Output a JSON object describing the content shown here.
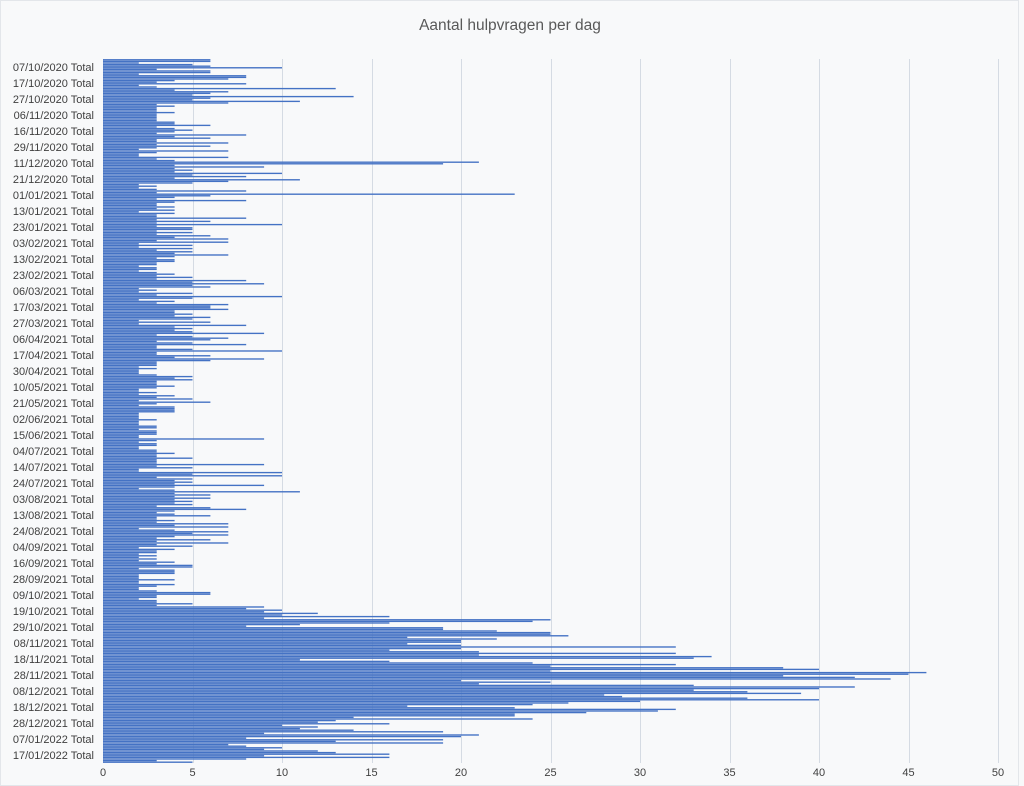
{
  "chart_data": {
    "type": "bar",
    "orientation": "horizontal",
    "title": "Aantal hulpvragen per dag",
    "xlim": [
      0,
      50
    ],
    "x_ticks": [
      0,
      5,
      10,
      15,
      20,
      25,
      30,
      35,
      40,
      45,
      50
    ],
    "grid": "vertical",
    "bar_color": "#4472C4",
    "groups": [
      {
        "label": "07/10/2020 Total",
        "values": [
          6,
          6,
          2,
          5,
          6,
          10,
          3,
          6,
          6,
          2
        ]
      },
      {
        "label": "17/10/2020 Total",
        "values": [
          8,
          8,
          7,
          4,
          3,
          8,
          2,
          3,
          13,
          4
        ]
      },
      {
        "label": "27/10/2020 Total",
        "values": [
          7,
          6,
          5,
          14,
          6,
          5,
          11,
          7,
          3,
          4
        ]
      },
      {
        "label": "06/11/2020 Total",
        "values": [
          3,
          3,
          3,
          4,
          3,
          3,
          3,
          3,
          3,
          4
        ]
      },
      {
        "label": "16/11/2020 Total",
        "values": [
          4,
          6,
          3,
          4,
          5,
          4,
          3,
          8,
          4,
          6
        ]
      },
      {
        "label": "29/11/2020 Total",
        "values": [
          3,
          3,
          7,
          3,
          6,
          3,
          2,
          7,
          3,
          2
        ]
      },
      {
        "label": "11/12/2020 Total",
        "values": [
          2,
          7,
          3,
          4,
          21,
          19,
          4,
          9,
          4,
          5
        ]
      },
      {
        "label": "21/12/2020 Total",
        "values": [
          4,
          10,
          5,
          8,
          4,
          11,
          7,
          5,
          2,
          3
        ]
      },
      {
        "label": "01/01/2021 Total",
        "values": [
          2,
          3,
          8,
          3,
          23,
          6,
          4,
          3,
          8,
          4
        ]
      },
      {
        "label": "13/01/2021 Total",
        "values": [
          3,
          3,
          4,
          3,
          4,
          2,
          4,
          3,
          3,
          8
        ]
      },
      {
        "label": "23/01/2021 Total",
        "values": [
          3,
          6,
          3,
          10,
          3,
          5,
          5,
          3,
          5,
          3
        ]
      },
      {
        "label": "03/02/2021 Total",
        "values": [
          6,
          4,
          7,
          3,
          7,
          2,
          5,
          2,
          5,
          3
        ]
      },
      {
        "label": "13/02/2021 Total",
        "values": [
          5,
          4,
          7,
          4,
          3,
          4,
          4,
          3,
          3,
          2
        ]
      },
      {
        "label": "23/02/2021 Total",
        "values": [
          3,
          3,
          2,
          3,
          4,
          3,
          5,
          3,
          8,
          5
        ]
      },
      {
        "label": "06/03/2021 Total",
        "values": [
          9,
          5,
          6,
          2,
          3,
          2,
          5,
          3,
          10,
          5
        ]
      },
      {
        "label": "17/03/2021 Total",
        "values": [
          2,
          4,
          3,
          7,
          6,
          6,
          7,
          4,
          4,
          5
        ]
      },
      {
        "label": "27/03/2021 Total",
        "values": [
          4,
          6,
          5,
          2,
          6,
          2,
          8,
          4,
          5,
          4
        ]
      },
      {
        "label": "06/04/2021 Total",
        "values": [
          5,
          9,
          3,
          5,
          7,
          6,
          3,
          5,
          8,
          3
        ]
      },
      {
        "label": "17/04/2021 Total",
        "values": [
          3,
          5,
          10,
          3,
          3,
          6,
          4,
          9,
          6,
          3
        ]
      },
      {
        "label": "30/04/2021 Total",
        "values": [
          3,
          3,
          2,
          3,
          2,
          2,
          2,
          3,
          5,
          4
        ]
      },
      {
        "label": "10/05/2021 Total",
        "values": [
          5,
          3,
          3,
          3,
          4,
          3,
          2,
          2,
          3,
          2
        ]
      },
      {
        "label": "21/05/2021 Total",
        "values": [
          4,
          3,
          5,
          2,
          6,
          3,
          2,
          4,
          4,
          4
        ]
      },
      {
        "label": "02/06/2021 Total",
        "values": [
          4,
          2,
          2,
          2,
          2,
          3,
          2,
          2,
          2,
          3
        ]
      },
      {
        "label": "15/06/2021 Total",
        "values": [
          3,
          2,
          3,
          3,
          3,
          2,
          2,
          9,
          3,
          2
        ]
      },
      {
        "label": "04/07/2021 Total",
        "values": [
          3,
          3,
          2,
          2,
          3,
          3,
          4,
          3,
          3,
          5
        ]
      },
      {
        "label": "14/07/2021 Total",
        "values": [
          3,
          3,
          3,
          9,
          3,
          5,
          2,
          2,
          10,
          5
        ]
      },
      {
        "label": "24/07/2021 Total",
        "values": [
          10,
          3,
          5,
          4,
          5,
          4,
          9,
          4,
          2,
          4
        ]
      },
      {
        "label": "03/08/2021 Total",
        "values": [
          11,
          4,
          6,
          4,
          6,
          4,
          5,
          4,
          5,
          3
        ]
      },
      {
        "label": "13/08/2021 Total",
        "values": [
          6,
          8,
          4,
          3,
          4,
          6,
          3,
          3,
          4,
          3
        ]
      },
      {
        "label": "24/08/2021 Total",
        "values": [
          7,
          4,
          7,
          2,
          4,
          7,
          5,
          7,
          4,
          3
        ]
      },
      {
        "label": "04/09/2021 Total",
        "values": [
          6,
          3,
          7,
          3,
          5,
          2,
          4,
          3,
          3,
          2
        ]
      },
      {
        "label": "16/09/2021 Total",
        "values": [
          3,
          2,
          3,
          2,
          4,
          3,
          5,
          5,
          2,
          4
        ]
      },
      {
        "label": "28/09/2021 Total",
        "values": [
          4,
          4,
          2,
          2,
          2,
          4,
          2,
          2,
          4,
          3
        ]
      },
      {
        "label": "09/10/2021 Total",
        "values": [
          2,
          2,
          3,
          6,
          6,
          3,
          3,
          2,
          3,
          3
        ]
      },
      {
        "label": "19/10/2021 Total",
        "values": [
          5,
          3,
          9,
          8,
          10,
          9,
          12,
          10,
          16,
          9
        ]
      },
      {
        "label": "29/10/2021 Total",
        "values": [
          25,
          24,
          16,
          11,
          8,
          19,
          19,
          22,
          25,
          25
        ]
      },
      {
        "label": "08/11/2021 Total",
        "values": [
          26,
          17,
          22,
          20,
          20,
          17,
          20,
          32,
          20,
          16
        ]
      },
      {
        "label": "18/11/2021 Total",
        "values": [
          21,
          32,
          21,
          34,
          33,
          11,
          16,
          24,
          32,
          25
        ]
      },
      {
        "label": "28/11/2021 Total",
        "values": [
          38,
          40,
          25,
          46,
          45,
          38,
          42,
          44,
          20,
          25
        ]
      },
      {
        "label": "08/12/2021 Total",
        "values": [
          21,
          33,
          42,
          40,
          33,
          36,
          39,
          28,
          29,
          36
        ]
      },
      {
        "label": "18/12/2021 Total",
        "values": [
          40,
          30,
          26,
          24,
          17,
          23,
          32,
          31,
          27,
          23
        ]
      },
      {
        "label": "28/12/2021 Total",
        "values": [
          23,
          14,
          24,
          13,
          12,
          16,
          10,
          12,
          11,
          14
        ]
      },
      {
        "label": "07/01/2022 Total",
        "values": [
          19,
          9,
          21,
          20,
          8,
          19,
          13,
          19,
          7,
          8
        ]
      },
      {
        "label": "17/01/2022 Total",
        "values": [
          10,
          9,
          12,
          13,
          16,
          9,
          16,
          8,
          3,
          5
        ]
      }
    ]
  }
}
